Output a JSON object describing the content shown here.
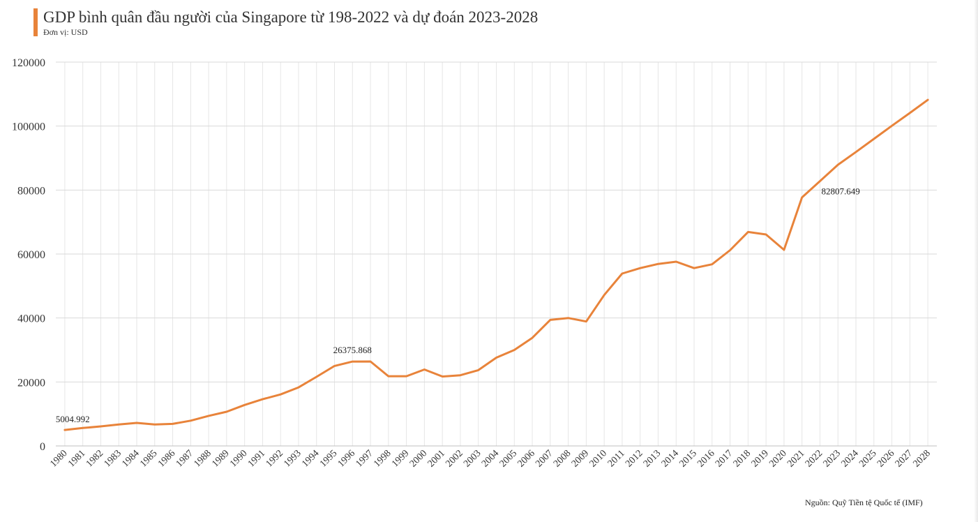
{
  "header": {
    "title": "GDP bình quân đầu người của Singapore từ 198-2022 và dự đoán 2023-2028",
    "subtitle": "Đơn vị: USD"
  },
  "footer": {
    "source": "Nguồn: Quỹ Tiền tệ Quốc tế (IMF)"
  },
  "colors": {
    "line": "#E8833A",
    "accent": "#E8833A",
    "grid": "#d9d9d9"
  },
  "chart_data": {
    "type": "line",
    "title": "GDP bình quân đầu người của Singapore từ 198-2022 và dự đoán 2023-2028",
    "xlabel": "",
    "ylabel": "",
    "ylim": [
      0,
      120000
    ],
    "yticks": [
      0,
      20000,
      40000,
      60000,
      80000,
      100000,
      120000
    ],
    "grid": true,
    "legend": "none",
    "categories": [
      "1980",
      "1981",
      "1982",
      "1983",
      "1984",
      "1985",
      "1986",
      "1987",
      "1988",
      "1989",
      "1990",
      "1991",
      "1992",
      "1993",
      "1994",
      "1995",
      "1996",
      "1997",
      "1998",
      "1999",
      "2000",
      "2001",
      "2002",
      "2003",
      "2004",
      "2005",
      "2006",
      "2007",
      "2008",
      "2009",
      "2010",
      "2011",
      "2012",
      "2013",
      "2014",
      "2015",
      "2016",
      "2017",
      "2018",
      "2019",
      "2020",
      "2021",
      "2022",
      "2023",
      "2024",
      "2025",
      "2026",
      "2027",
      "2028"
    ],
    "series": [
      {
        "name": "GDP bình quân đầu người",
        "values": [
          5004.992,
          5600,
          6100,
          6700,
          7200,
          6700,
          6900,
          7900,
          9400,
          10700,
          12800,
          14600,
          16100,
          18300,
          21600,
          25000,
          26375.868,
          26400,
          21800,
          21800,
          23900,
          21700,
          22100,
          23700,
          27600,
          30000,
          33800,
          39400,
          40000,
          38900,
          47200,
          53900,
          55600,
          56900,
          57600,
          55600,
          56800,
          61200,
          66900,
          66100,
          61300,
          77700,
          82807.649,
          87900,
          91900,
          96000,
          100100,
          104100,
          108200
        ]
      }
    ],
    "annotations": [
      {
        "category": "1980",
        "text": "5004.992"
      },
      {
        "category": "1996",
        "text": "26375.868"
      },
      {
        "category": "2022",
        "text": "82807.649"
      }
    ]
  }
}
